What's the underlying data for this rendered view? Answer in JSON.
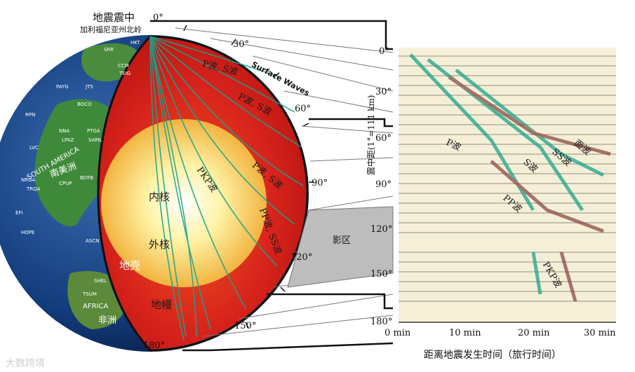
{
  "epicenter": {
    "title": "地震震中",
    "subtitle": "加利福尼亚州北岭"
  },
  "layers": {
    "inner_core": "内核",
    "outer_core": "外核",
    "crust": "地壳",
    "mantle": "地幔"
  },
  "wave_labels": {
    "p_s_1": "P波, S波",
    "p_s_2": "P波, S波",
    "p_s_3": "P波, S波",
    "pp_ss": "PP波, SS波",
    "pkp": "PKP波",
    "surface": "Surface Waves",
    "shadow": "影区"
  },
  "globe": {
    "continent_south_america_en": "SOUTH AMERICA",
    "continent_south_america_zh": "南美洲",
    "continent_africa_en": "AFRICA",
    "continent_africa_zh": "非洲",
    "stations": [
      "SRR",
      "HKT",
      "CCM",
      "TEIG",
      "PAYG",
      "JTS",
      "BOCO",
      "RPN",
      "NNA",
      "LPAZ",
      "LVC",
      "SAML",
      "PTGA",
      "BDFB",
      "CPUP",
      "TRQA",
      "NRGA",
      "EFI",
      "HOPE",
      "ASCN",
      "SHEL",
      "TSUM"
    ]
  },
  "degree_marks": [
    "0°",
    "30°",
    "60°",
    "90°",
    "120°",
    "150°",
    "180°"
  ],
  "seismogram": {
    "y_axis_label": "震中距(1°=111 km)",
    "y_ticks": [
      "0°",
      "30°",
      "60°",
      "90°",
      "120°",
      "150°",
      "180°"
    ],
    "x_ticks": [
      "0 min",
      "10 min",
      "20 min",
      "30 min"
    ],
    "x_title": "距离地震发生时间（旅行时间）",
    "phase_labels": {
      "p": "P波",
      "s": "S波",
      "ss": "SS波",
      "surface": "面波",
      "pp": "PP波",
      "pkp": "PKP波"
    }
  },
  "watermark": "大数跨境",
  "colors": {
    "mantle": "#d8231c",
    "outer_core": "#f0a830",
    "inner_core": "#fff3b0",
    "ray": "#1aa38a",
    "paper": "#f6efd8",
    "shadow": "#bdbdbd"
  }
}
